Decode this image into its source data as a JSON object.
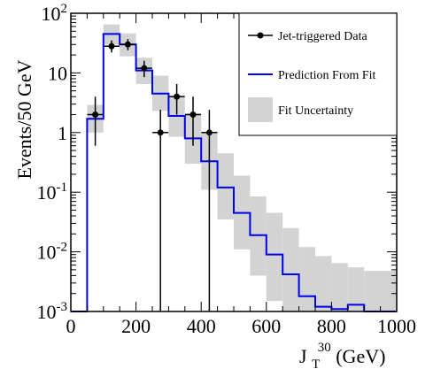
{
  "chart_data": {
    "type": "line",
    "xlabel": "J",
    "xlabel_sub": "T",
    "xlabel_sup": "30",
    "xlabel_unit": " (GeV)",
    "ylabel": "Events/50 GeV",
    "xlim": [
      0,
      1000
    ],
    "ylim_log10": [
      -3,
      2
    ],
    "log_y": true,
    "grid": false,
    "legend_position": "top-right",
    "x_ticks": [
      {
        "v": 0,
        "label": "0"
      },
      {
        "v": 200,
        "label": "200"
      },
      {
        "v": 400,
        "label": "400"
      },
      {
        "v": 600,
        "label": "600"
      },
      {
        "v": 800,
        "label": "800"
      },
      {
        "v": 1000,
        "label": "1000"
      }
    ],
    "y_ticks": [
      {
        "exp": 2,
        "base": "10",
        "sup": "2"
      },
      {
        "exp": 1,
        "base": "10",
        "sup": ""
      },
      {
        "exp": 0,
        "base": "1",
        "sup": ""
      },
      {
        "exp": -1,
        "base": "10",
        "sup": "-1"
      },
      {
        "exp": -2,
        "base": "10",
        "sup": "-2"
      },
      {
        "exp": -3,
        "base": "10",
        "sup": "-3"
      }
    ],
    "series": [
      {
        "name": "Jet-triggered Data",
        "kind": "points",
        "color": "#000000",
        "points": [
          {
            "x": 75,
            "y": 2.0,
            "ylo": 0.6,
            "yhi": 4.0
          },
          {
            "x": 125,
            "y": 28,
            "ylo": 22,
            "yhi": 35
          },
          {
            "x": 175,
            "y": 30,
            "ylo": 24,
            "yhi": 37
          },
          {
            "x": 225,
            "y": 12,
            "ylo": 8.5,
            "yhi": 16
          },
          {
            "x": 275,
            "y": 1.0,
            "ylo": 0.001,
            "yhi": 2.4
          },
          {
            "x": 325,
            "y": 4.0,
            "ylo": 2.0,
            "yhi": 6.5
          },
          {
            "x": 375,
            "y": 2.0,
            "ylo": 0.6,
            "yhi": 4.0
          },
          {
            "x": 425,
            "y": 1.0,
            "ylo": 0.001,
            "yhi": 2.4
          }
        ]
      },
      {
        "name": "Prediction From Fit",
        "kind": "step",
        "color": "#0000ee",
        "bins": [
          {
            "x0": 0,
            "x1": 50,
            "y": 0.001
          },
          {
            "x0": 50,
            "x1": 100,
            "y": 1.7
          },
          {
            "x0": 100,
            "x1": 150,
            "y": 45
          },
          {
            "x0": 150,
            "x1": 200,
            "y": 30
          },
          {
            "x0": 200,
            "x1": 250,
            "y": 11
          },
          {
            "x0": 250,
            "x1": 300,
            "y": 4.5
          },
          {
            "x0": 300,
            "x1": 350,
            "y": 1.9
          },
          {
            "x0": 350,
            "x1": 400,
            "y": 0.8
          },
          {
            "x0": 400,
            "x1": 450,
            "y": 0.33
          },
          {
            "x0": 450,
            "x1": 500,
            "y": 0.12
          },
          {
            "x0": 500,
            "x1": 550,
            "y": 0.045
          },
          {
            "x0": 550,
            "x1": 600,
            "y": 0.019
          },
          {
            "x0": 600,
            "x1": 650,
            "y": 0.009
          },
          {
            "x0": 650,
            "x1": 700,
            "y": 0.0042
          },
          {
            "x0": 700,
            "x1": 750,
            "y": 0.0018
          },
          {
            "x0": 750,
            "x1": 800,
            "y": 0.0012
          },
          {
            "x0": 800,
            "x1": 850,
            "y": 0.0011
          },
          {
            "x0": 850,
            "x1": 900,
            "y": 0.0013
          },
          {
            "x0": 900,
            "x1": 1000,
            "y": 0.001
          }
        ]
      },
      {
        "name": "Fit Uncertainty",
        "kind": "band",
        "color": "#d3d3d3",
        "bins": [
          {
            "x0": 50,
            "x1": 100,
            "lo": 1.0,
            "hi": 2.9
          },
          {
            "x0": 100,
            "x1": 150,
            "lo": 30,
            "hi": 65
          },
          {
            "x0": 150,
            "x1": 200,
            "lo": 19,
            "hi": 46
          },
          {
            "x0": 200,
            "x1": 250,
            "lo": 6.5,
            "hi": 18
          },
          {
            "x0": 250,
            "x1": 300,
            "lo": 2.3,
            "hi": 9.0
          },
          {
            "x0": 300,
            "x1": 350,
            "lo": 0.85,
            "hi": 4.2
          },
          {
            "x0": 350,
            "x1": 400,
            "lo": 0.3,
            "hi": 2.1
          },
          {
            "x0": 400,
            "x1": 450,
            "lo": 0.11,
            "hi": 1.0
          },
          {
            "x0": 450,
            "x1": 500,
            "lo": 0.035,
            "hi": 0.45
          },
          {
            "x0": 500,
            "x1": 550,
            "lo": 0.011,
            "hi": 0.19
          },
          {
            "x0": 550,
            "x1": 600,
            "lo": 0.004,
            "hi": 0.085
          },
          {
            "x0": 600,
            "x1": 650,
            "lo": 0.0015,
            "hi": 0.045
          },
          {
            "x0": 650,
            "x1": 700,
            "lo": 0.001,
            "hi": 0.025
          },
          {
            "x0": 700,
            "x1": 750,
            "lo": 0.001,
            "hi": 0.012
          },
          {
            "x0": 750,
            "x1": 800,
            "lo": 0.001,
            "hi": 0.0085
          },
          {
            "x0": 800,
            "x1": 850,
            "lo": 0.001,
            "hi": 0.0065
          },
          {
            "x0": 850,
            "x1": 900,
            "lo": 0.001,
            "hi": 0.0055
          },
          {
            "x0": 900,
            "x1": 1000,
            "lo": 0.001,
            "hi": 0.0048
          }
        ]
      }
    ]
  }
}
